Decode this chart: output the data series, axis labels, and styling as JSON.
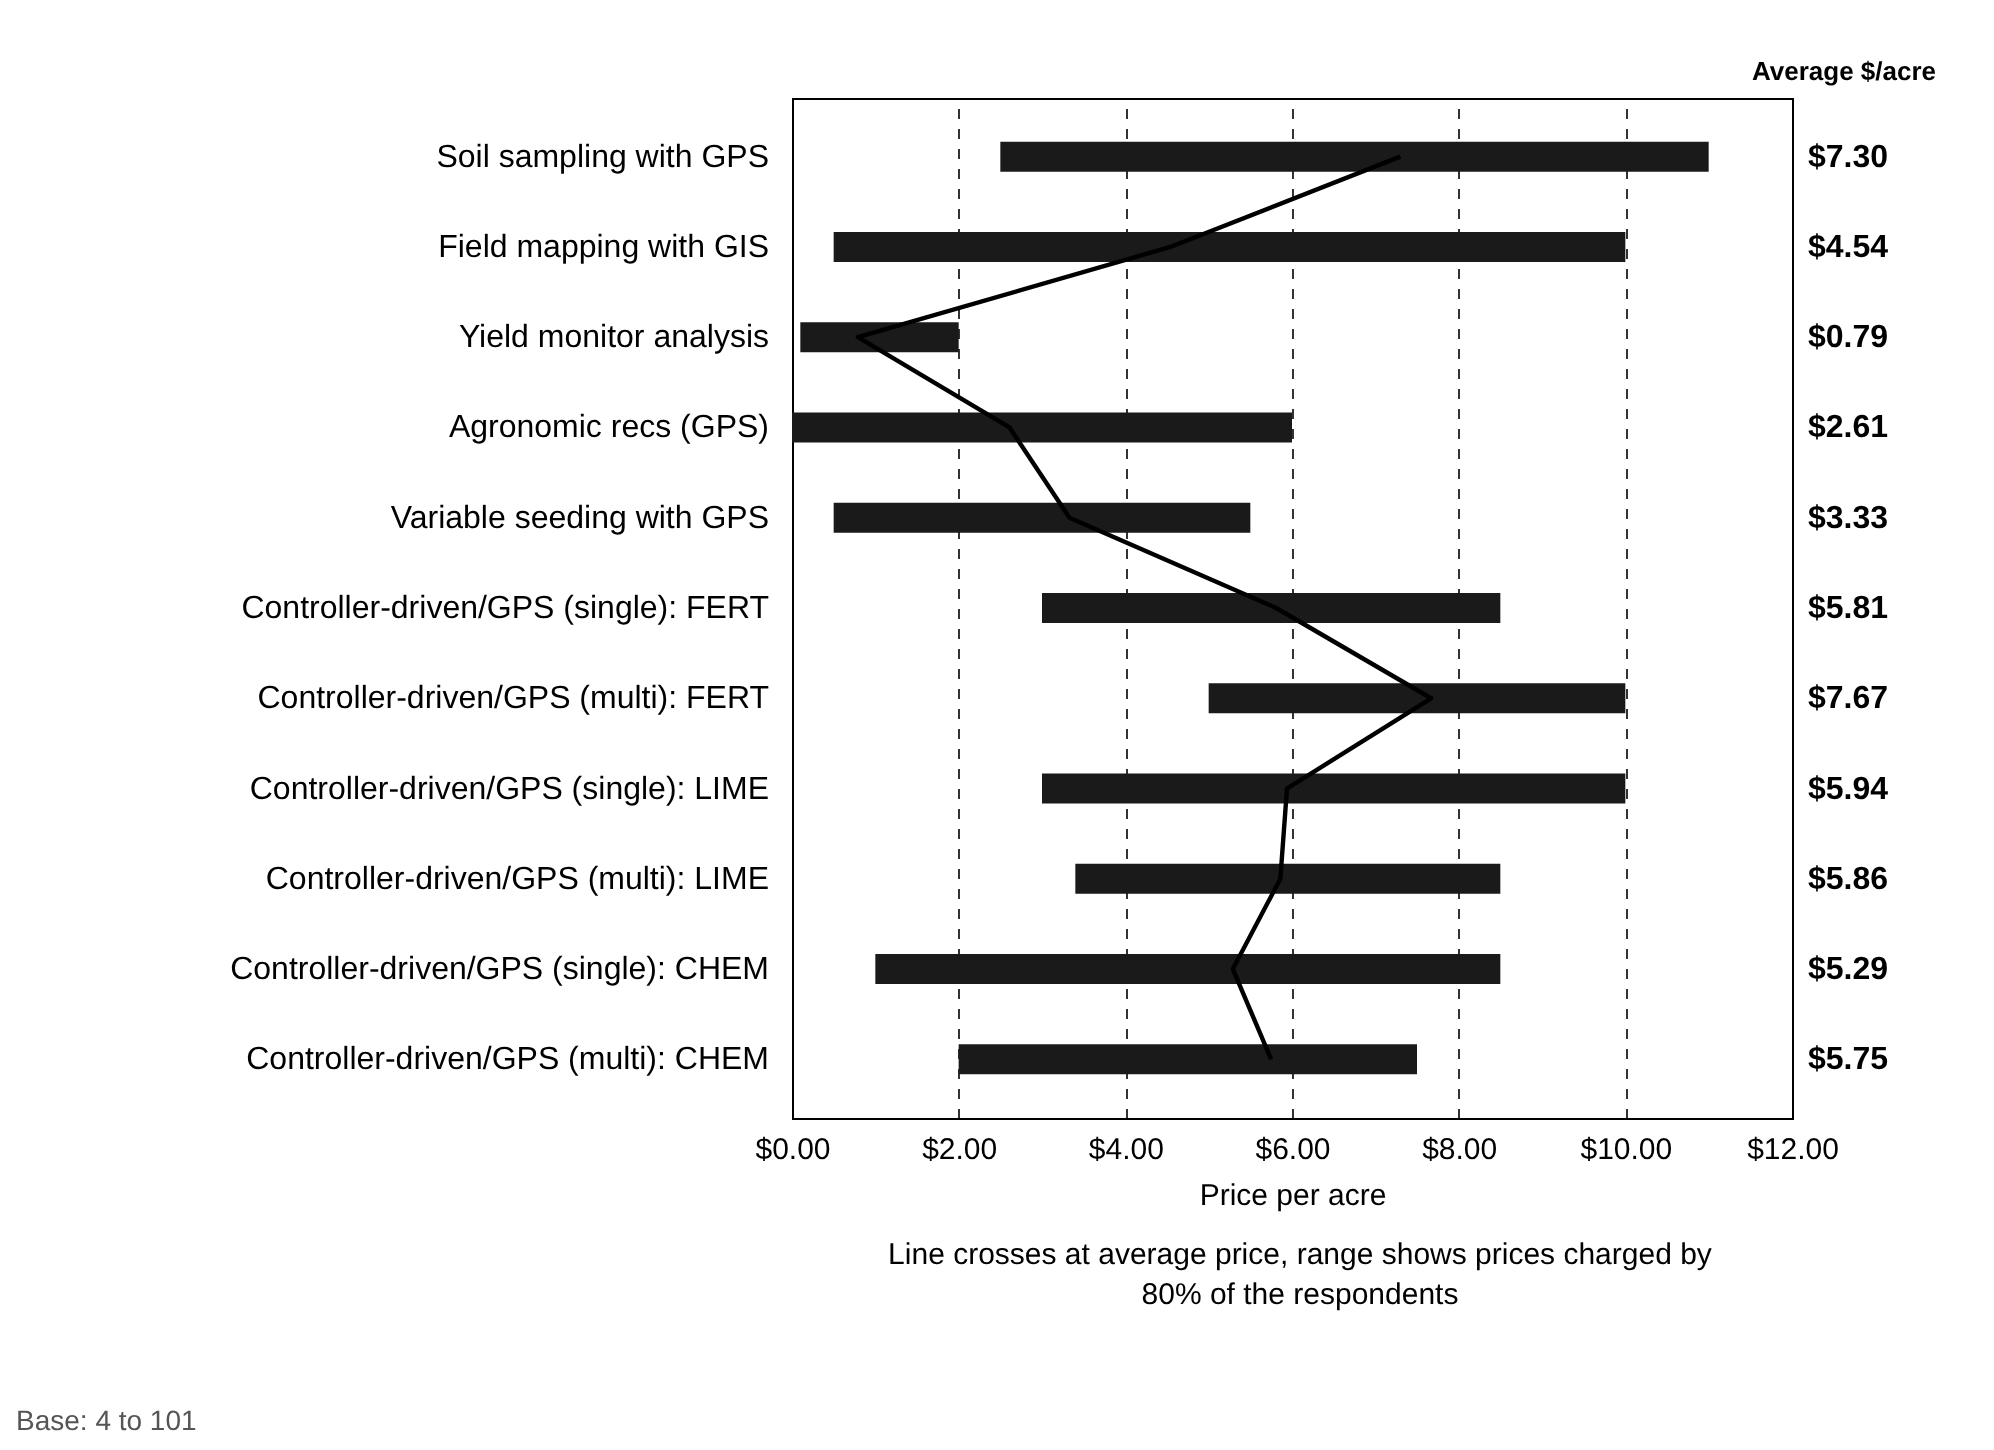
{
  "chart_data": {
    "type": "bar",
    "orientation": "horizontal",
    "categories": [
      "Soil sampling with GPS",
      "Field mapping with GIS",
      "Yield monitor analysis",
      "Agronomic recs (GPS)",
      "Variable seeding with GPS",
      "Controller-driven/GPS (single):  FERT",
      "Controller-driven/GPS (multi):  FERT",
      "Controller-driven/GPS (single):  LIME",
      "Controller-driven/GPS (multi):  LIME",
      "Controller-driven/GPS (single):  CHEM",
      "Controller-driven/GPS (multi):  CHEM"
    ],
    "series": [
      {
        "color": "#1a1a1a",
        "base": [
          2.5,
          0.5,
          0.1,
          0,
          0.5,
          3,
          5,
          3,
          3.4,
          1,
          2
        ],
        "values": [
          8.5,
          9.5,
          1.9,
          6,
          5,
          5.5,
          5,
          7,
          5.1,
          7.5,
          5.5
        ]
      },
      {
        "type": "line",
        "color": "#000000",
        "values": [
          7.3,
          4.54,
          0.79,
          2.61,
          3.33,
          5.81,
          7.67,
          5.94,
          5.86,
          5.29,
          5.75
        ],
        "value_labels": [
          "$7.30",
          "$4.54",
          "$0.79",
          "$2.61",
          "$3.33",
          "$5.81",
          "$7.67",
          "$5.94",
          "$5.86",
          "$5.29",
          "$5.75"
        ]
      }
    ],
    "xlim": [
      0,
      12
    ],
    "xticks": [
      {
        "value": 0,
        "label": "$0.00"
      },
      {
        "value": 2,
        "label": "$2.00"
      },
      {
        "value": 4,
        "label": "$4.00"
      },
      {
        "value": 6,
        "label": "$6.00"
      },
      {
        "value": 8,
        "label": "$8.00"
      },
      {
        "value": 10,
        "label": "$10.00"
      },
      {
        "value": 12,
        "label": "$12.00"
      }
    ],
    "grid": "x",
    "xlabel": "Price per acre",
    "annotations": [
      "Average $/acre",
      "Line crosses at average price, range shows prices charged by 80% of the respondents",
      "Base:  4 to 101"
    ]
  }
}
